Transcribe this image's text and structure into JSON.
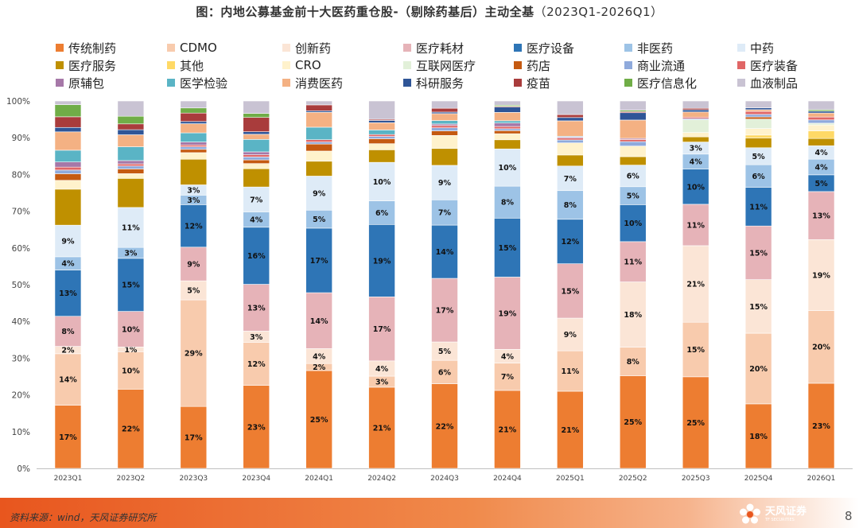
{
  "title": "图：内地公募基金前十大医药重仓股-（剔除药基后）主动全基",
  "title_range": "（2023Q1-2026Q1）",
  "footer": {
    "source": "资料来源：wind，天风证券研究所",
    "logo_text": "天风证券",
    "logo_sub": "TF SECURITIES",
    "page_number": "8"
  },
  "chart_data": {
    "type": "bar",
    "stacked": true,
    "title": "内地公募基金前十大医药重仓股-（剔除药基后）主动全基（2023Q1-2026Q1）",
    "categories": [
      "2023Q1",
      "2023Q2",
      "2023Q3",
      "2023Q4",
      "2024Q1",
      "2024Q2",
      "2024Q3",
      "2024Q4",
      "2025Q1",
      "2025Q2",
      "2025Q3",
      "2025Q4",
      "2026Q1"
    ],
    "ylim": [
      0,
      100
    ],
    "yticks": [
      "0%",
      "10%",
      "20%",
      "30%",
      "40%",
      "50%",
      "60%",
      "70%",
      "80%",
      "90%",
      "100%"
    ],
    "legend_position": "top",
    "series": [
      {
        "name": "传统制药",
        "color": "#ed7d31",
        "values": [
          17.2,
          21.8,
          16.9,
          22.7,
          25.0,
          21.3,
          22.1,
          20.5,
          21.0,
          25.3,
          25.0,
          17.8,
          23.4
        ],
        "labels": [
          "17%",
          "22%",
          "17%",
          "23%",
          "25%",
          "21%",
          "22%",
          "21%",
          "21%",
          "25%",
          "25%",
          "18%",
          "23%"
        ]
      },
      {
        "name": "CDMO",
        "color": "#f8cbad",
        "values": [
          14.0,
          10.3,
          29.1,
          11.7,
          1.8,
          2.9,
          6.1,
          7.2,
          11.0,
          7.8,
          14.9,
          19.5,
          20.0
        ],
        "labels": [
          "14%",
          "10%",
          "29%",
          "12%",
          "2%",
          "3%",
          "6%",
          "7%",
          "11%",
          "8%",
          "15%",
          "20%",
          "20%"
        ]
      },
      {
        "name": "创新药",
        "color": "#fbe5d6",
        "values": [
          2.0,
          1.3,
          5.2,
          3.1,
          3.8,
          4.0,
          4.8,
          3.6,
          8.9,
          17.8,
          20.9,
          14.8,
          19.5
        ],
        "labels": [
          "2%",
          "1%",
          "5%",
          "3%",
          "4%",
          "4%",
          "5%",
          "4%",
          "9%",
          "18%",
          "21%",
          "15%",
          "19%"
        ]
      },
      {
        "name": "医疗耗材",
        "color": "#e6b3b8",
        "values": [
          8.2,
          9.8,
          9.2,
          12.8,
          14.3,
          16.8,
          16.6,
          19.0,
          14.8,
          11.0,
          11.3,
          14.8,
          13.2
        ],
        "labels": [
          "8%",
          "10%",
          "9%",
          "13%",
          "14%",
          "17%",
          "17%",
          "19%",
          "15%",
          "11%",
          "11%",
          "15%",
          "13%"
        ]
      },
      {
        "name": "医疗设备",
        "color": "#2e75b6",
        "values": [
          12.6,
          14.6,
          11.6,
          15.6,
          16.5,
          19.0,
          13.9,
          15.5,
          12.1,
          10.1,
          9.6,
          10.7,
          4.6
        ],
        "labels": [
          "13%",
          "15%",
          "12%",
          "16%",
          "17%",
          "19%",
          "14%",
          "15%",
          "12%",
          "10%",
          "10%",
          "11%",
          "5%"
        ]
      },
      {
        "name": "非医药",
        "color": "#9dc3e6",
        "values": [
          3.6,
          3.0,
          2.6,
          4.2,
          4.6,
          6.2,
          6.6,
          8.4,
          7.8,
          4.9,
          4.1,
          6.2,
          4.3
        ],
        "labels": [
          "4%",
          "3%",
          "3%",
          "4%",
          "5%",
          "6%",
          "7%",
          "8%",
          "8%",
          "5%",
          "4%",
          "6%",
          "4%"
        ]
      },
      {
        "name": "中药",
        "color": "#deebf7",
        "values": [
          8.6,
          11.0,
          2.8,
          6.8,
          8.7,
          10.1,
          9.0,
          9.8,
          6.7,
          5.9,
          3.3,
          4.7,
          3.7
        ],
        "labels": [
          "9%",
          "11%",
          "3%",
          "7%",
          "9%",
          "10%",
          "9%",
          "10%",
          "7%",
          "6%",
          "3%",
          "5%",
          "4%"
        ]
      },
      {
        "name": "医疗服务",
        "color": "#bf9000",
        "values": [
          9.8,
          8.0,
          7.0,
          5.0,
          3.8,
          3.3,
          4.4,
          2.4,
          3.0,
          2.3,
          1.4,
          2.7,
          2.0
        ],
        "labels": []
      },
      {
        "name": "其他",
        "color": "#ffd966",
        "values": [
          0,
          0,
          0,
          0,
          0,
          0,
          0,
          0,
          0,
          0,
          0,
          0.8,
          2.1
        ],
        "labels": []
      },
      {
        "name": "CRO",
        "color": "#fff2cc",
        "values": [
          2.4,
          1.3,
          1.8,
          1.4,
          2.6,
          1.6,
          3.4,
          1.6,
          3.3,
          2.9,
          1.2,
          1.8,
          1.6
        ],
        "labels": []
      },
      {
        "name": "互联网医疗",
        "color": "#e2f0d9",
        "values": [
          0,
          0,
          0,
          0,
          0,
          0,
          0,
          0,
          0,
          0,
          3.5,
          2.6,
          0.5
        ],
        "labels": []
      },
      {
        "name": "药店",
        "color": "#c55a11",
        "values": [
          1.8,
          1.3,
          0.9,
          1.0,
          1.8,
          1.3,
          1.2,
          0.8,
          0,
          0,
          0,
          0.6,
          0
        ],
        "labels": []
      },
      {
        "name": "商业流通",
        "color": "#8faadc",
        "values": [
          1.0,
          0.8,
          0.7,
          0.8,
          0.5,
          0.6,
          0.8,
          0.5,
          0.8,
          1.2,
          0.3,
          0.7,
          0.9
        ],
        "labels": []
      },
      {
        "name": "医疗装备",
        "color": "#e06666",
        "values": [
          0.8,
          0.6,
          0.5,
          0.6,
          0.6,
          0.5,
          0.6,
          0.6,
          0.5,
          0.6,
          0.4,
          0.8,
          0.8
        ],
        "labels": []
      },
      {
        "name": "原辅包",
        "color": "#a678a8",
        "values": [
          1.4,
          0.9,
          0.8,
          0.8,
          0,
          0,
          0.4,
          0.9,
          0.3,
          0.3,
          0,
          0,
          0
        ],
        "labels": []
      },
      {
        "name": "医学检验",
        "color": "#5ab4c5",
        "values": [
          3.2,
          3.8,
          2.5,
          3.4,
          3.2,
          1.2,
          0.9,
          0.6,
          0.2,
          0,
          0,
          0,
          0
        ],
        "labels": []
      },
      {
        "name": "消费医药",
        "color": "#f4b183",
        "values": [
          5.0,
          3.3,
          2.5,
          1.4,
          3.8,
          1.9,
          1.8,
          2.2,
          4.2,
          5.0,
          1.4,
          0.5,
          1.1
        ],
        "labels": []
      },
      {
        "name": "科研服务",
        "color": "#2f5597",
        "values": [
          1.2,
          1.4,
          0.6,
          0.7,
          0.4,
          0.6,
          0.4,
          1.4,
          0.9,
          2.0,
          0.6,
          0.5,
          0.5
        ],
        "labels": []
      },
      {
        "name": "疫苗",
        "color": "#a93c3c",
        "values": [
          2.9,
          1.6,
          2.3,
          3.9,
          1.5,
          0.3,
          1.0,
          0.2,
          0.8,
          0.3,
          0.4,
          0,
          0
        ],
        "labels": []
      },
      {
        "name": "医疗信息化",
        "color": "#70ad47",
        "values": [
          3.3,
          2.1,
          1.4,
          1.1,
          0,
          0,
          0,
          0.3,
          0,
          0.4,
          0,
          0,
          0.4
        ],
        "labels": []
      },
      {
        "name": "血液制品",
        "color": "#c9c3d3",
        "values": [
          1.0,
          4.2,
          1.9,
          3.4,
          1.0,
          4.8,
          1.9,
          1.1,
          3.7,
          2.5,
          2.0,
          1.9,
          2.4
        ],
        "labels": []
      }
    ]
  }
}
